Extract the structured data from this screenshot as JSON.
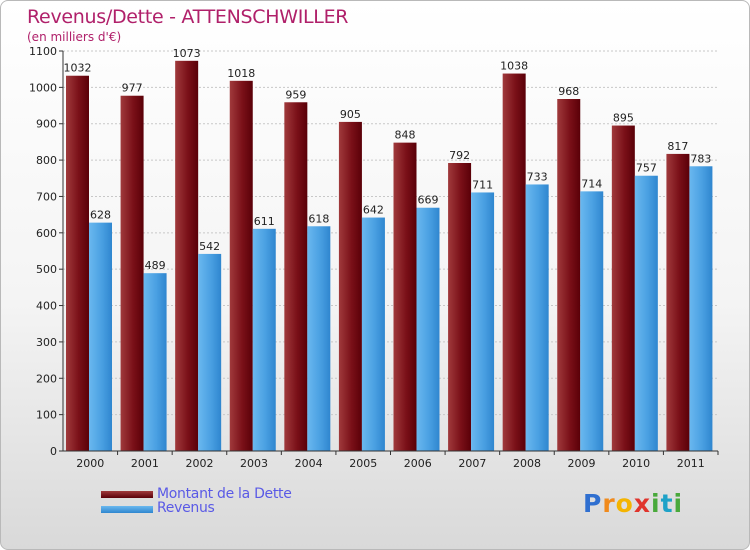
{
  "title": "Revenus/Dette - ATTENSCHWILLER",
  "subtitle": "(en milliers d'€)",
  "legend": {
    "debt_label": "Montant de la Dette",
    "revenue_label": "Revenus"
  },
  "logo": {
    "letters": [
      "P",
      "r",
      "o",
      "x",
      "i",
      "t",
      "i"
    ],
    "colors": [
      "#2f6fd0",
      "#f08a1c",
      "#f4b400",
      "#e0342c",
      "#49a93b",
      "#1ea2c8",
      "#49a93b"
    ]
  },
  "colors": {
    "debt": "#6a0a12",
    "debt_light": "#a03a3c",
    "revenue": "#2f86cf",
    "revenue_light": "#6ab8ef",
    "grid": "#c8c8c8",
    "axis": "#333333"
  },
  "chart_data": {
    "type": "bar",
    "categories": [
      "2000",
      "2001",
      "2002",
      "2003",
      "2004",
      "2005",
      "2006",
      "2007",
      "2008",
      "2009",
      "2010",
      "2011"
    ],
    "series": [
      {
        "name": "Montant de la Dette",
        "values": [
          1032,
          977,
          1073,
          1018,
          959,
          905,
          848,
          792,
          1038,
          968,
          895,
          817
        ]
      },
      {
        "name": "Revenus",
        "values": [
          628,
          489,
          542,
          611,
          618,
          642,
          669,
          711,
          733,
          714,
          757,
          783
        ]
      }
    ],
    "ylim": [
      0,
      1100
    ],
    "yticks": [
      0,
      100,
      200,
      300,
      400,
      500,
      600,
      700,
      800,
      900,
      1000,
      1100
    ],
    "grid": true,
    "legend_position": "bottom-left"
  }
}
